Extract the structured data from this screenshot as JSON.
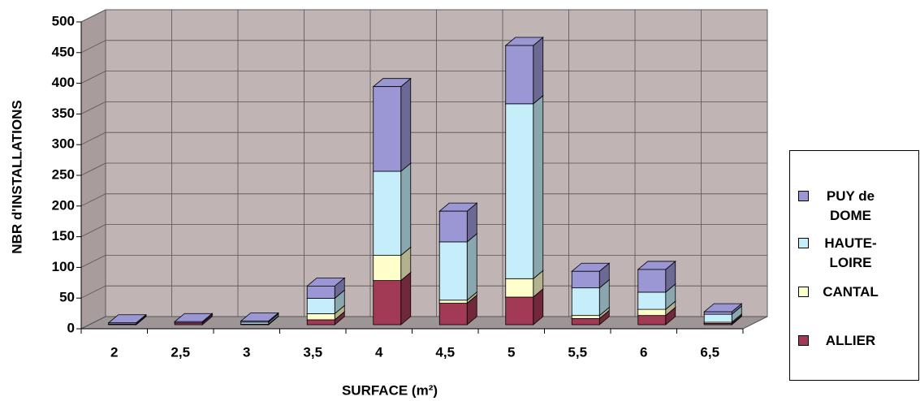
{
  "chart_data": {
    "type": "bar3d_stacked",
    "x_label": "SURFACE (m²)",
    "y_label": "NBR d'INSTALLATIONS",
    "categories": [
      "2",
      "2,5",
      "3",
      "3,5",
      "4",
      "4,5",
      "5",
      "5,5",
      "6",
      "6,5"
    ],
    "series": [
      {
        "name": "ALLIER",
        "color": "#a23a55",
        "values": [
          1,
          3,
          1,
          8,
          72,
          35,
          45,
          10,
          15,
          2
        ]
      },
      {
        "name": "CANTAL",
        "color": "#ffffcc",
        "values": [
          0,
          0,
          0,
          10,
          41,
          5,
          30,
          5,
          10,
          2
        ]
      },
      {
        "name": "HAUTE-LOIRE",
        "color": "#c6eefa",
        "values": [
          0,
          0,
          3,
          25,
          137,
          95,
          285,
          45,
          28,
          13
        ]
      },
      {
        "name": "PUY de DOME",
        "color": "#9b97d4",
        "values": [
          2,
          2,
          2,
          20,
          138,
          50,
          95,
          27,
          37,
          4
        ]
      }
    ],
    "ylim": [
      0,
      500
    ],
    "yticks": [
      0,
      50,
      100,
      150,
      200,
      250,
      300,
      350,
      400,
      450,
      500
    ],
    "grid": true,
    "legend": "right"
  }
}
